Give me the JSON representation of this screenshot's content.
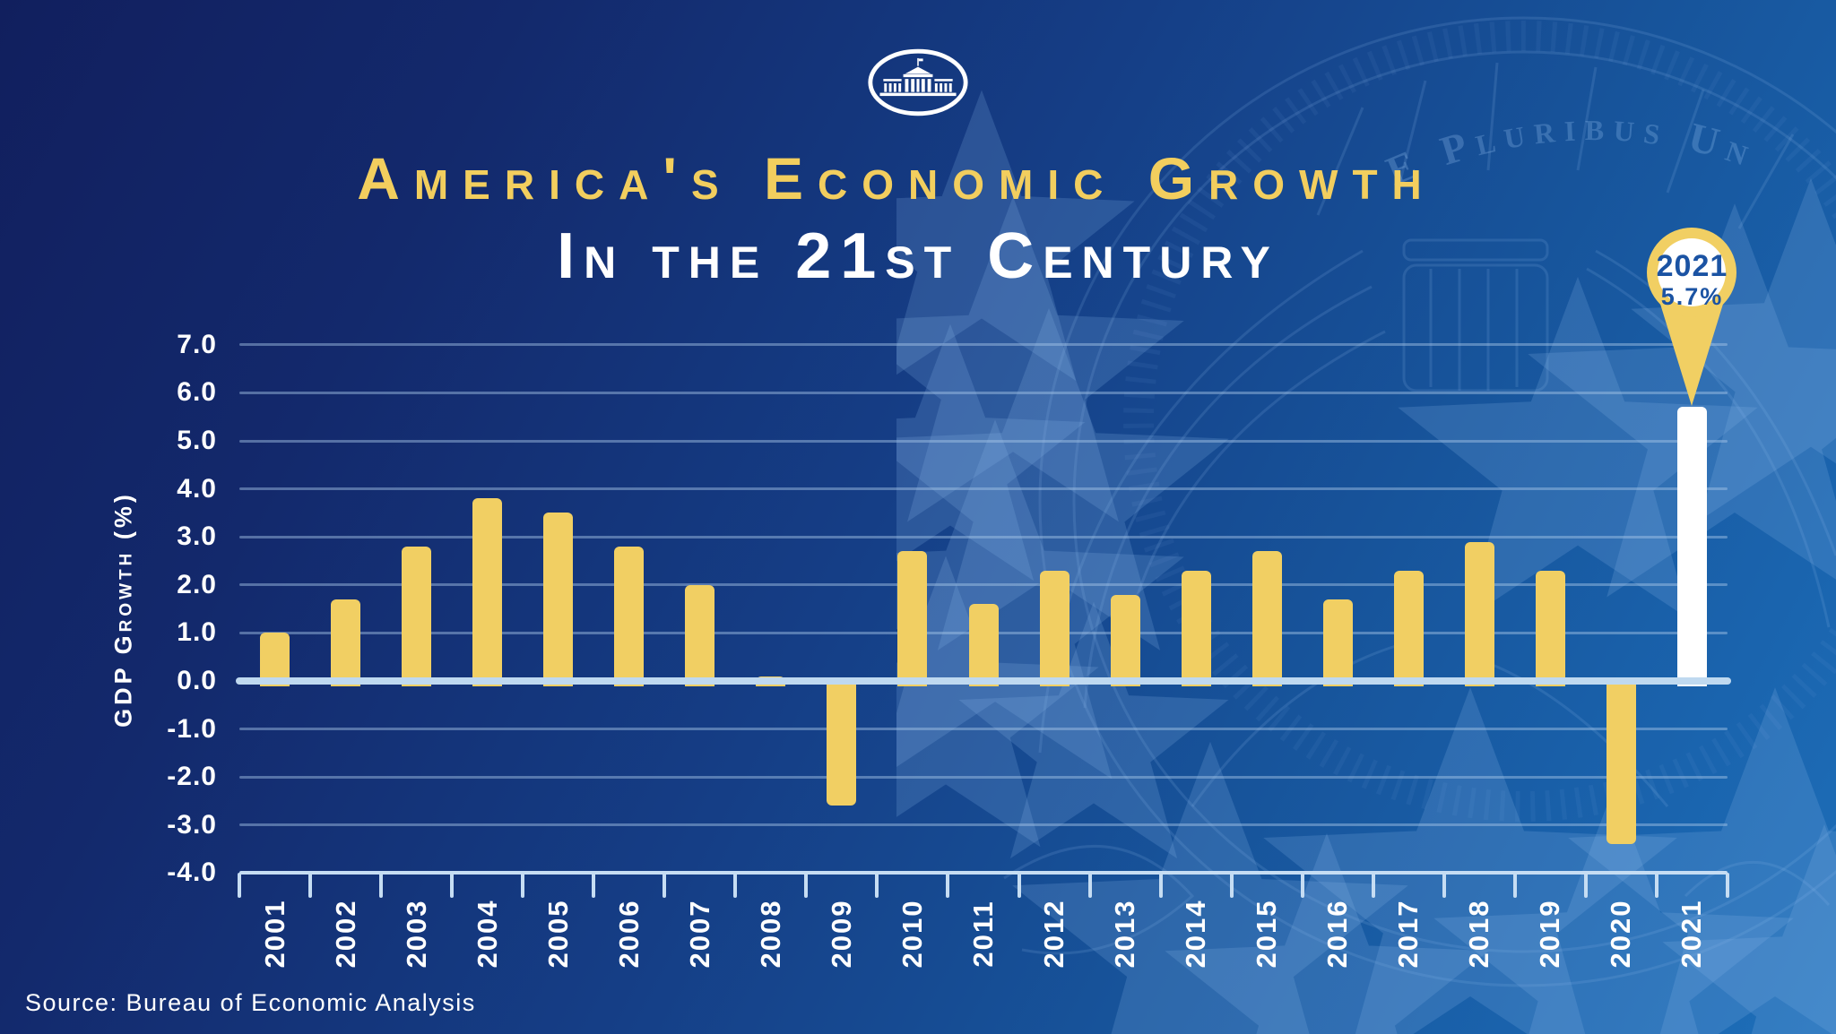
{
  "header": {
    "logo_icon": "white-house-logo",
    "title_line1": "America's Economic Growth",
    "title_line2": "In the 21st Century"
  },
  "watermark_text": "E Pluribus Unum",
  "callout": {
    "year": "2021",
    "value": "5.7%"
  },
  "source_note": "Source: Bureau of Economic Analysis",
  "colors": {
    "background_top": "#111F5E",
    "background_bottom": "#1E6FB9",
    "bar_yellow": "#F1CF63",
    "highlight_bar_white": "#FFFFFF",
    "zero_baseline": "#BFD9F0",
    "gridline": "#A9C7E8",
    "axis_text": "#FFFFFF",
    "title_yellow": "#F2CE5E",
    "pin_text_blue": "#1B53A3"
  },
  "chart_data": {
    "type": "bar",
    "title": "America's Economic Growth in the 21st Century",
    "xlabel": "",
    "ylabel": "GDP Growth (%)",
    "categories": [
      "2001",
      "2002",
      "2003",
      "2004",
      "2005",
      "2006",
      "2007",
      "2008",
      "2009",
      "2010",
      "2011",
      "2012",
      "2013",
      "2014",
      "2015",
      "2016",
      "2017",
      "2018",
      "2019",
      "2020",
      "2021"
    ],
    "values": [
      1.0,
      1.7,
      2.8,
      3.8,
      3.5,
      2.8,
      2.0,
      0.1,
      -2.6,
      2.7,
      1.6,
      2.3,
      1.8,
      2.3,
      2.7,
      1.7,
      2.3,
      2.9,
      2.3,
      -3.4,
      5.7
    ],
    "ylim": [
      -4.0,
      7.0
    ],
    "ytick_step": 1.0,
    "ytick_labels": [
      "7.0",
      "6.0",
      "5.0",
      "4.0",
      "3.0",
      "2.0",
      "1.0",
      "0.0",
      "-1.0",
      "-2.0",
      "-3.0",
      "-4.0"
    ],
    "grid": true,
    "legend": false,
    "bar_color": "#F1CF63",
    "highlight": {
      "category": "2021",
      "bar_color": "#FFFFFF",
      "pin_year": "2021",
      "pin_value": "5.7%"
    }
  }
}
